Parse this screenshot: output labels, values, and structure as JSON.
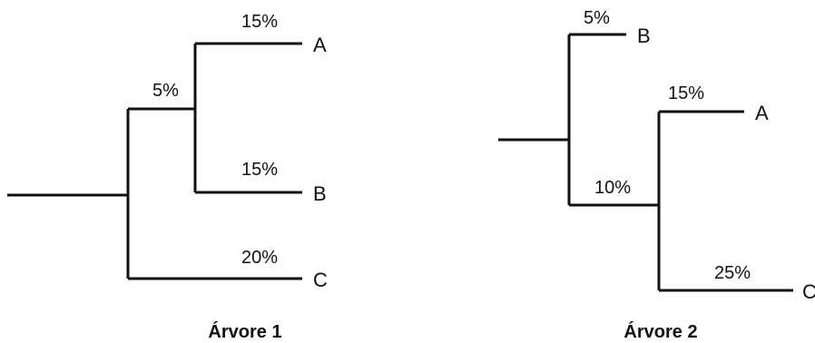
{
  "tree1": {
    "caption": "Árvore 1",
    "leaves": {
      "A": "A",
      "B": "B",
      "C": "C"
    },
    "labels": {
      "internal": "5%",
      "A": "15%",
      "B": "15%",
      "C": "20%"
    }
  },
  "tree2": {
    "caption": "Árvore 2",
    "leaves": {
      "A": "A",
      "B": "B",
      "C": "C"
    },
    "labels": {
      "B": "5%",
      "internal": "10%",
      "A": "15%",
      "C": "25%"
    }
  },
  "colors": {
    "line": "#111111",
    "background": "#ffffff"
  }
}
